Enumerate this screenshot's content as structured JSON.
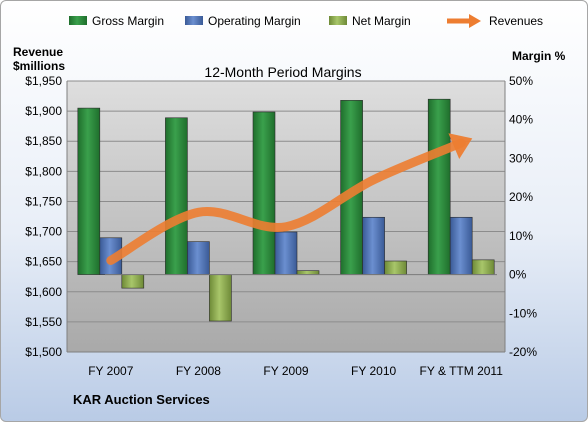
{
  "chart_data": {
    "type": "bar",
    "title": "12-Month Period Margins",
    "company": "KAR Auction Services",
    "left_axis_label": [
      "Revenue",
      "$millions"
    ],
    "right_axis_label": "Margin %",
    "categories": [
      "FY 2007",
      "FY 2008",
      "FY 2009",
      "FY 2010",
      "FY & TTM 2011"
    ],
    "left_axis": {
      "min": 1500,
      "max": 1950,
      "step": 50,
      "tick_labels": [
        "$1,950",
        "$1,900",
        "$1,850",
        "$1,800",
        "$1,750",
        "$1,700",
        "$1,650",
        "$1,600",
        "$1,550",
        "$1,500"
      ]
    },
    "right_axis": {
      "min": -20,
      "max": 50,
      "step": 10,
      "tick_labels": [
        "50%",
        "40%",
        "30%",
        "20%",
        "10%",
        "0%",
        "-10%",
        "-20%"
      ]
    },
    "grid": true,
    "legend_position": "top",
    "series": [
      {
        "name": "Gross Margin",
        "type": "bar",
        "axis": "right",
        "color": "#2e8b3e",
        "values": [
          43,
          40.5,
          42,
          45,
          45.3
        ]
      },
      {
        "name": "Operating Margin",
        "type": "bar",
        "axis": "right",
        "color": "#4f74b8",
        "values": [
          9.5,
          8.5,
          11,
          14.8,
          14.8
        ]
      },
      {
        "name": "Net Margin",
        "type": "bar",
        "axis": "right",
        "color": "#8fae4f",
        "values": [
          -3.5,
          -12,
          1,
          3.5,
          3.8
        ]
      },
      {
        "name": "Revenues",
        "type": "line",
        "axis": "left",
        "color": "#ed7d31",
        "values": [
          1652,
          1732,
          1708,
          1786,
          1847
        ]
      }
    ]
  }
}
